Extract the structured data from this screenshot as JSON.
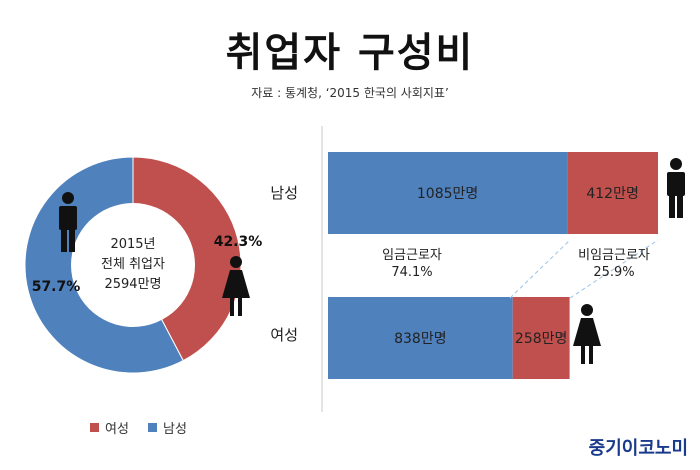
{
  "title": "취업자 구성비",
  "source": "자료 : 통계청, ‘2015 한국의 사회지표’",
  "brand": "중기이코노미",
  "colors": {
    "female": "#c0504d",
    "male": "#4f81bd",
    "divider": "#9dc3e6"
  },
  "chart_data": [
    {
      "type": "pie",
      "center_text": [
        "2015년",
        "전체 취업자",
        "2594만명"
      ],
      "slices": [
        {
          "name": "여성",
          "value": 42.3,
          "label": "42.3%",
          "color": "#c0504d"
        },
        {
          "name": "남성",
          "value": 57.7,
          "label": "57.7%",
          "color": "#4f81bd"
        }
      ],
      "legend": [
        {
          "name": "여성",
          "color": "#c0504d"
        },
        {
          "name": "남성",
          "color": "#4f81bd"
        }
      ]
    },
    {
      "type": "bar",
      "orientation": "horizontal",
      "stacked": true,
      "categories": [
        "남성",
        "여성"
      ],
      "series": [
        {
          "name": "임금근로자",
          "values": [
            1085,
            838
          ],
          "labels": [
            "1085만명",
            "838만명"
          ],
          "color": "#4f81bd"
        },
        {
          "name": "비임금근로자",
          "values": [
            412,
            258
          ],
          "labels": [
            "412만명",
            "258만명"
          ],
          "color": "#c0504d"
        }
      ],
      "annotations": [
        {
          "text": [
            "임금근로자",
            "74.1%"
          ]
        },
        {
          "text": [
            "비임금근로자",
            "25.9%"
          ]
        }
      ]
    }
  ]
}
